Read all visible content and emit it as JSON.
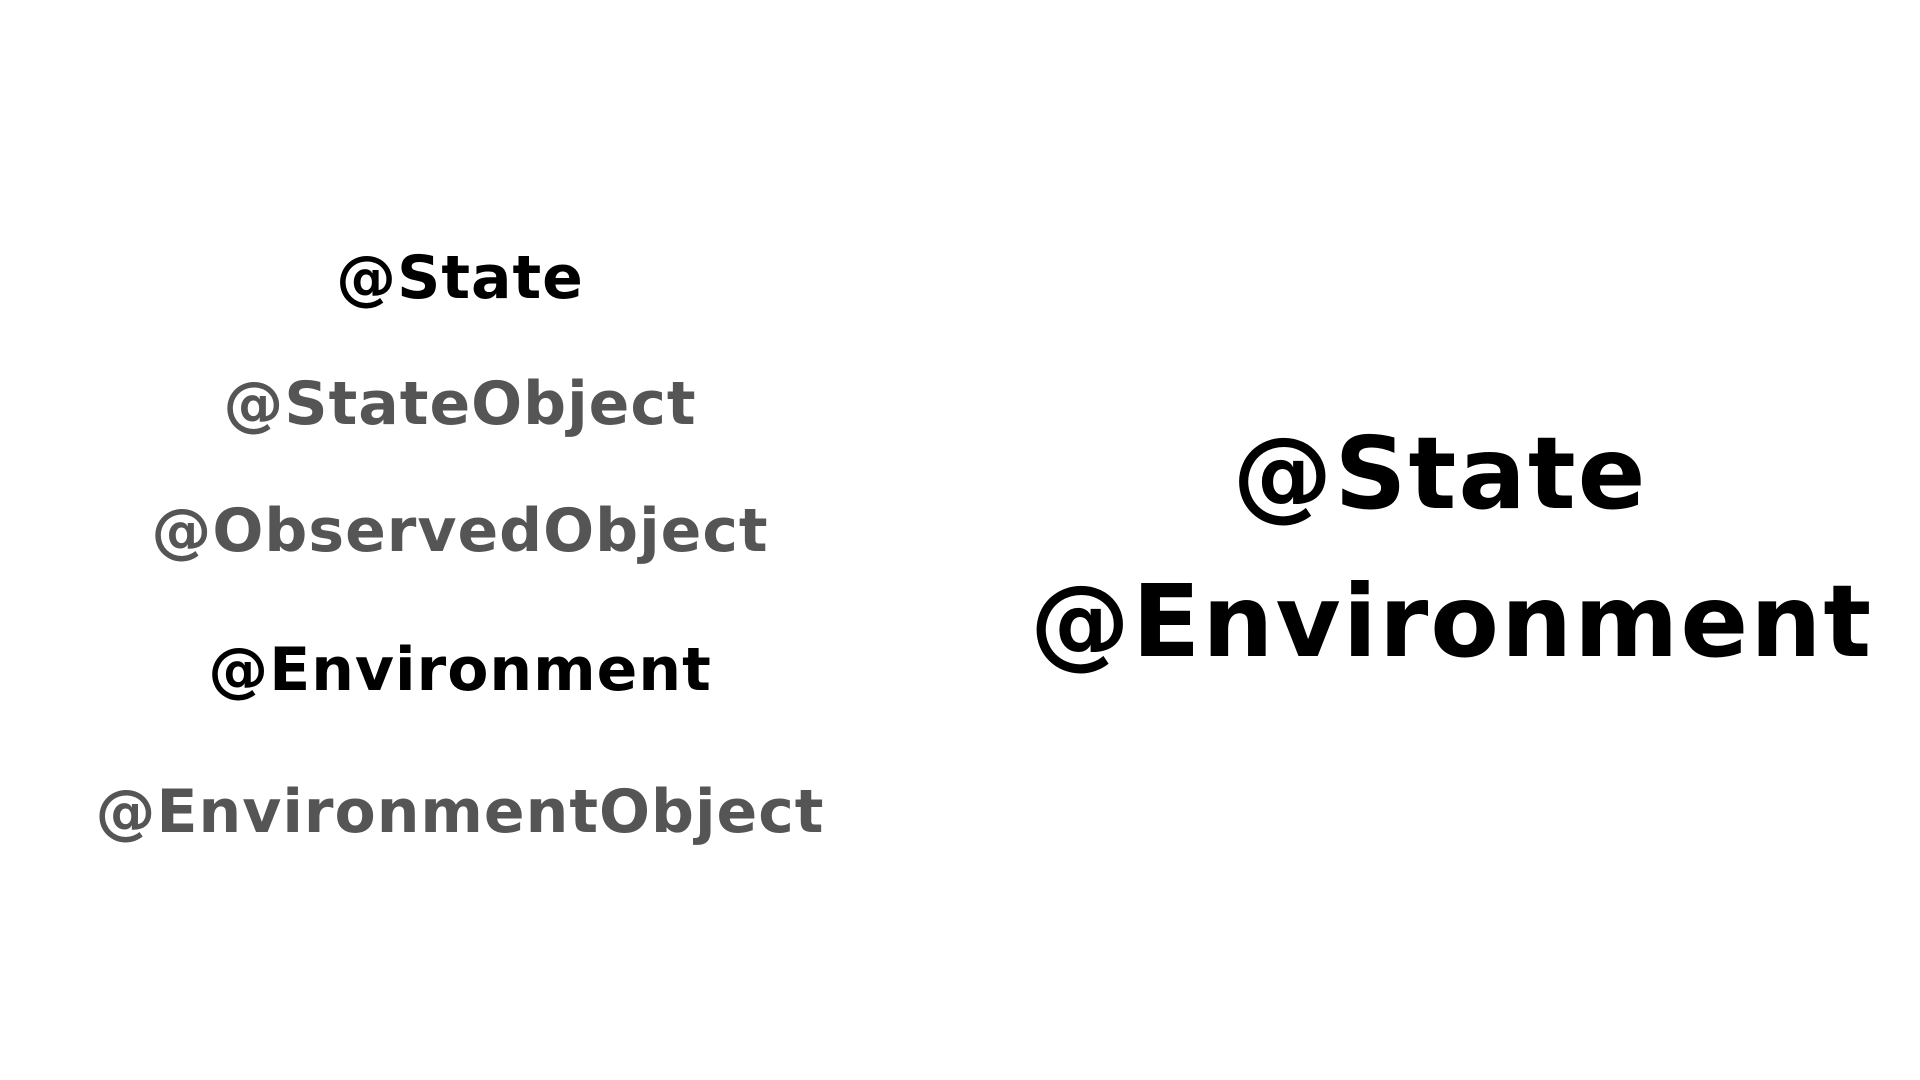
{
  "left_list": {
    "items": [
      {
        "label": "@State",
        "emphasis": true
      },
      {
        "label": "@StateObject",
        "emphasis": false
      },
      {
        "label": "@ObservedObject",
        "emphasis": false
      },
      {
        "label": "@Environment",
        "emphasis": true
      },
      {
        "label": "@EnvironmentObject",
        "emphasis": false
      }
    ]
  },
  "right_panel": {
    "lines": [
      "@State",
      "@Environment"
    ]
  },
  "colors": {
    "emphasis": "#000000",
    "dimmed": "#555555",
    "background": "#ffffff"
  }
}
